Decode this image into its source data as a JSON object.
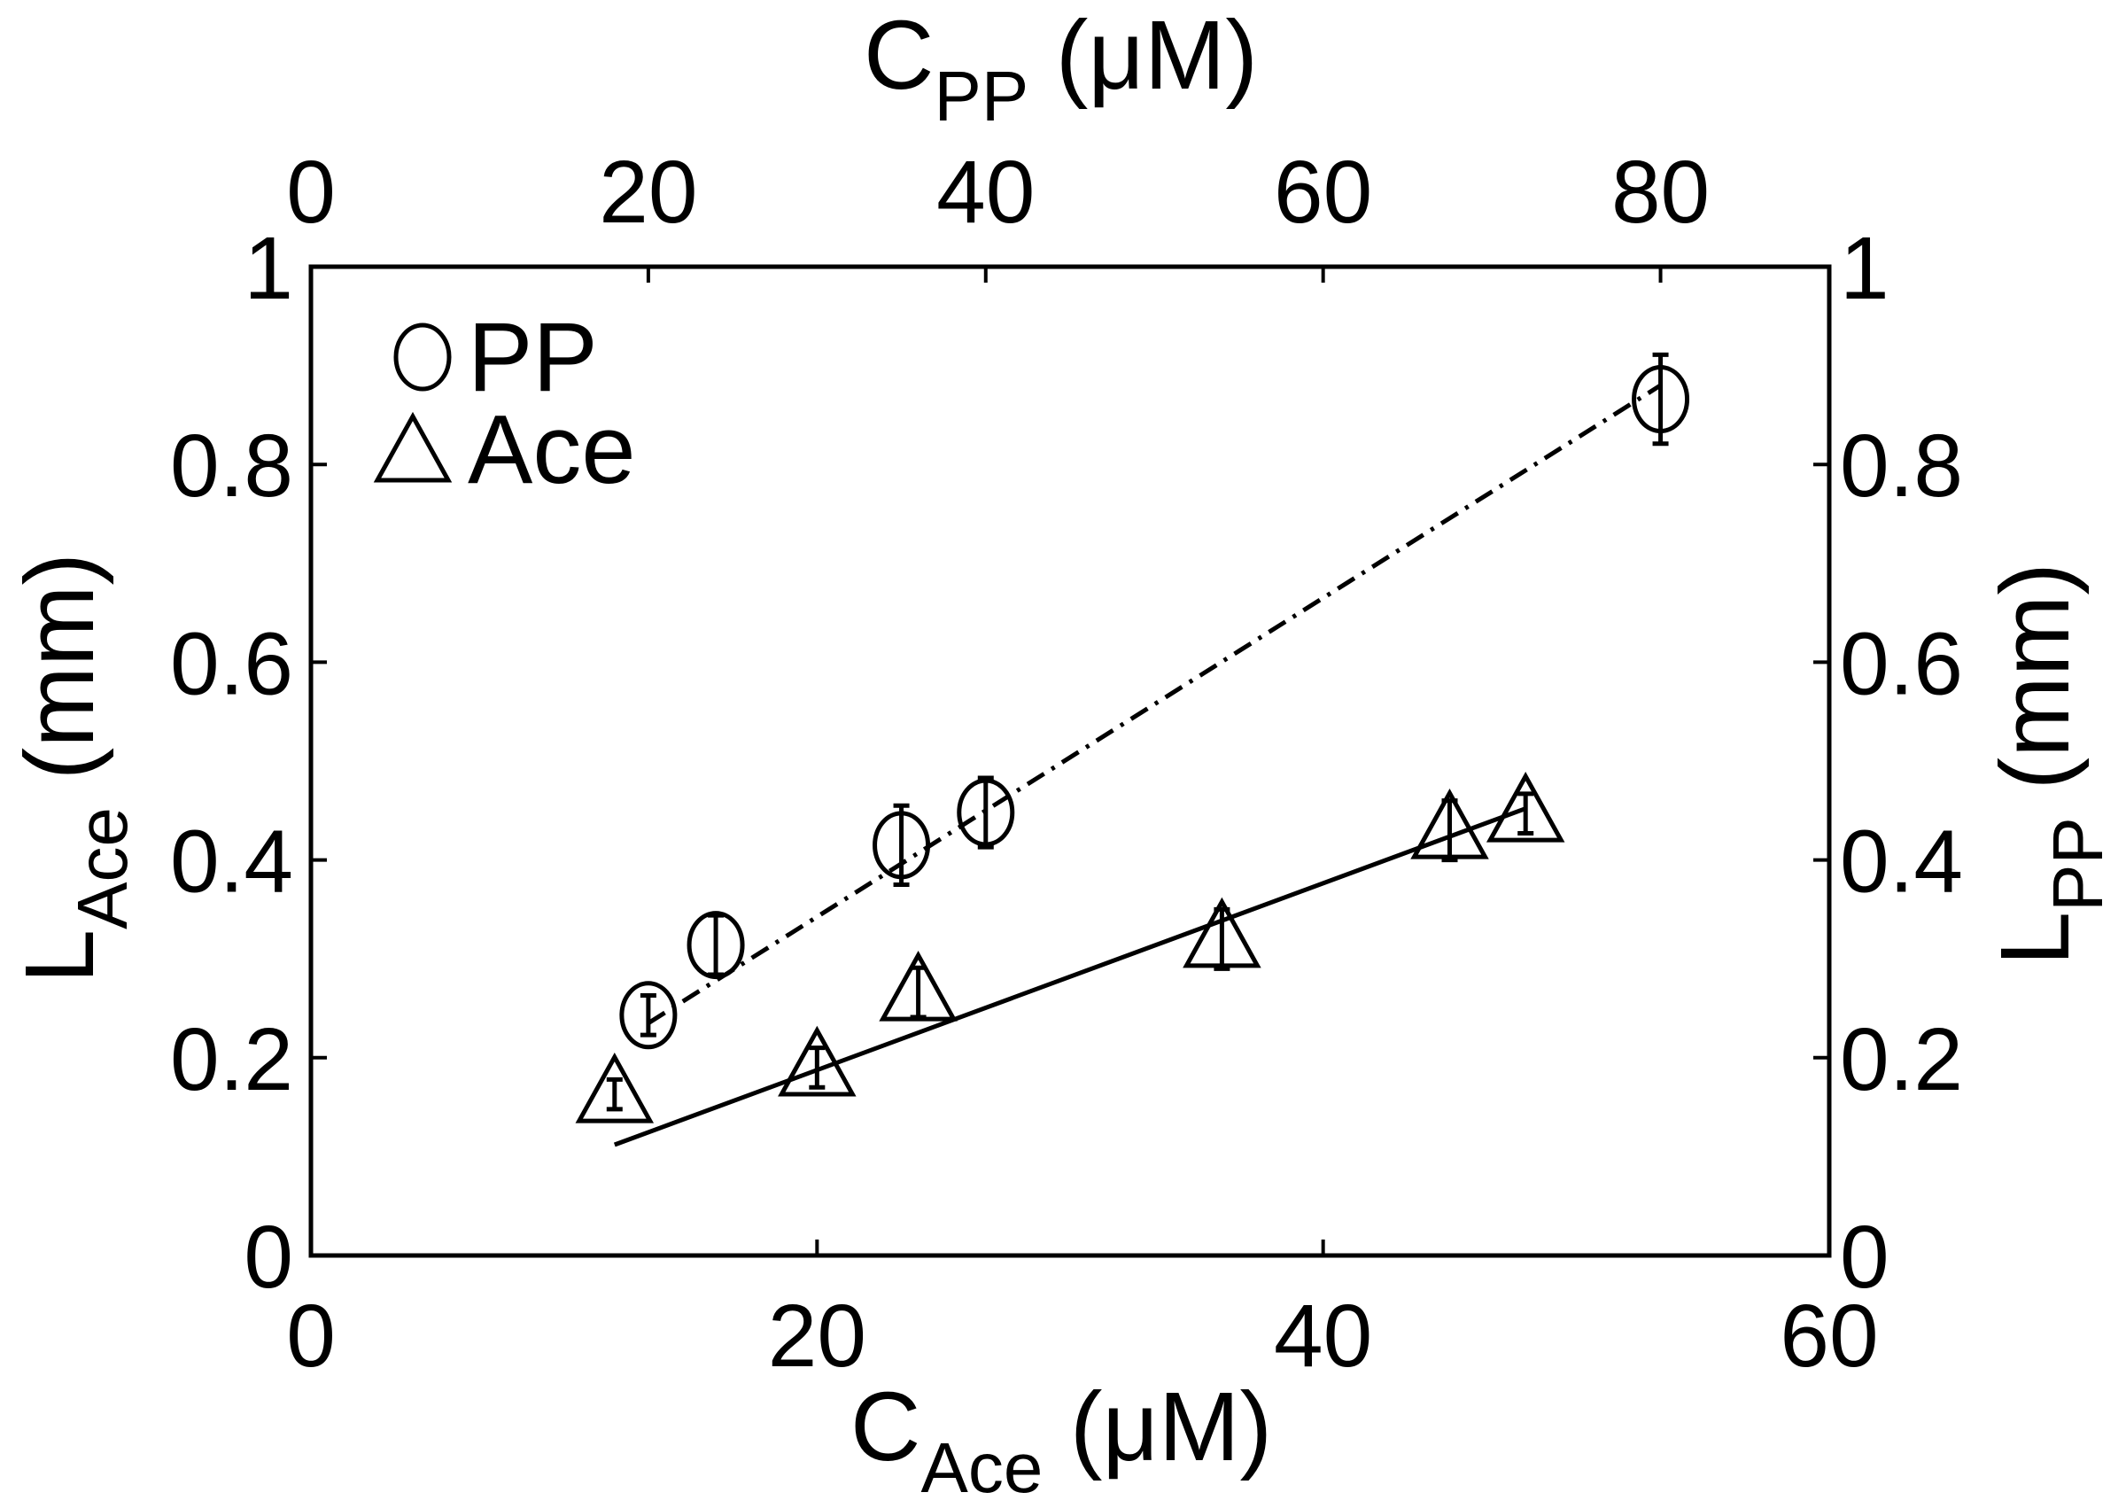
{
  "chart_data": {
    "type": "scatter",
    "title": "",
    "xlabel_bottom": {
      "main": "C",
      "sub": "Ace",
      "unit": " (μM)"
    },
    "xlabel_top": {
      "main": "C",
      "sub": "PP",
      "unit": " (μM)"
    },
    "ylabel_left": {
      "main": "L",
      "sub": "Ace",
      "unit": " (mm)"
    },
    "ylabel_right": {
      "main": "L",
      "sub": "PP",
      "unit": " (mm)"
    },
    "xlim_bottom": [
      0,
      60
    ],
    "xlim_top": [
      0,
      90
    ],
    "ylim": [
      0,
      1
    ],
    "xticks_bottom": [
      "0",
      "20",
      "40",
      "60"
    ],
    "xticks_top": [
      "0",
      "20",
      "40",
      "60",
      "80"
    ],
    "yticks": [
      "0",
      "0.2",
      "0.4",
      "0.6",
      "0.8",
      "1"
    ],
    "grid": false,
    "legend_position": "top-left",
    "series": [
      {
        "name": "PP",
        "marker": "circle",
        "axis": "top-right",
        "x": [
          20,
          24,
          35,
          40,
          80
        ],
        "y": [
          0.243,
          0.314,
          0.415,
          0.448,
          0.866
        ],
        "err": [
          0.02,
          0.03,
          0.04,
          0.035,
          0.045
        ],
        "fit": {
          "style": "dash-dot",
          "x": [
            20,
            80
          ],
          "y": [
            0.235,
            0.88
          ]
        }
      },
      {
        "name": "Ace",
        "marker": "triangle",
        "axis": "bottom-left",
        "x": [
          12,
          20,
          24,
          36,
          45,
          48
        ],
        "y": [
          0.163,
          0.19,
          0.266,
          0.32,
          0.43,
          0.447
        ],
        "err": [
          0.015,
          0.02,
          0.025,
          0.03,
          0.03,
          0.02
        ],
        "fit": {
          "style": "solid",
          "x": [
            12,
            48
          ],
          "y": [
            0.112,
            0.452
          ]
        }
      }
    ]
  }
}
